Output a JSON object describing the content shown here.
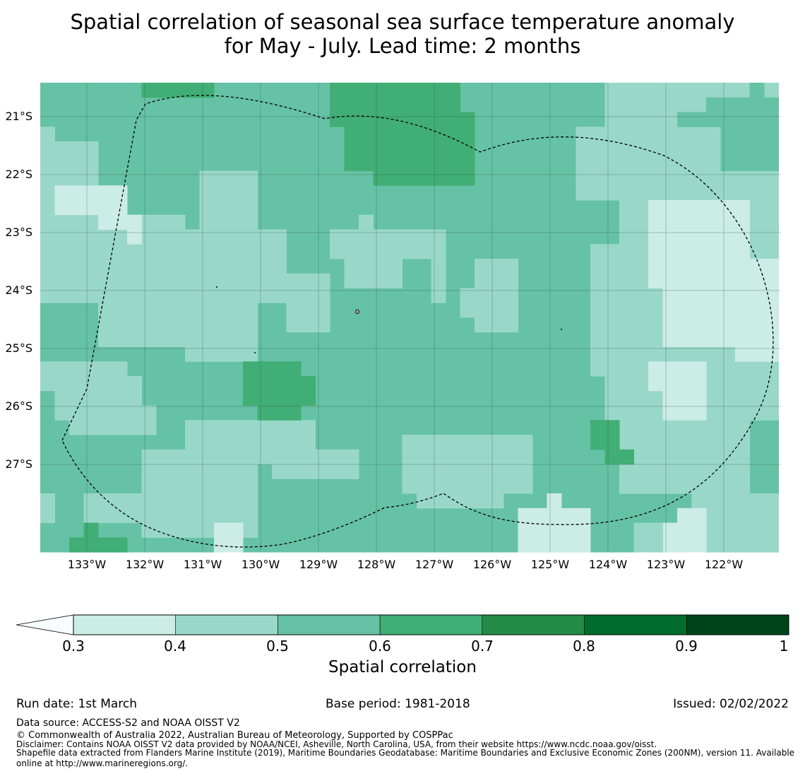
{
  "title": {
    "line1": "Spatial correlation of seasonal sea surface temperature anomaly",
    "line2": "for May - July. Lead time: 2 months"
  },
  "map": {
    "lat_labels": [
      "21°S",
      "22°S",
      "23°S",
      "24°S",
      "25°S",
      "26°S",
      "27°S"
    ],
    "lon_labels": [
      "133°W",
      "132°W",
      "131°W",
      "130°W",
      "129°W",
      "128°W",
      "127°W",
      "126°W",
      "125°W",
      "124°W",
      "123°W",
      "122°W"
    ],
    "colors": {
      "border_line": "#000000",
      "grid_line": "#2f4f3f"
    }
  },
  "colorbar": {
    "ticks": [
      "0.3",
      "0.4",
      "0.5",
      "0.6",
      "0.7",
      "0.8",
      "0.9",
      "1"
    ],
    "label": "Spatial correlation",
    "bin_colors": [
      "#ccece6",
      "#99d8c9",
      "#66c2a4",
      "#41ae76",
      "#238b45",
      "#006d2c",
      "#00441b"
    ],
    "extend_color": "#f7fcfd"
  },
  "footer": {
    "run_date": "Run date: 1st March",
    "base_period": "Base period: 1981-2018",
    "issued": "Issued: 02/02/2022",
    "data_source": "Data source: ACCESS-S2 and NOAA OISST V2",
    "copyright": "© Commonwealth of Australia 2022, Australian Bureau of Meteorology, Supported by COSPPac",
    "disclaimer": "Disclaimer: Contains NOAA OISST V2 data provided by NOAA/NCEI, Asheville, North Carolina, USA, from their website https://www.ncdc.noaa.gov/oisst.",
    "shapefile_line1": "Shapefile data extracted from Flanders Marine Institute (2019), Maritime Boundaries Geodatabase: Maritime Boundaries and Exclusive Economic Zones (200NM), version 11. Available",
    "shapefile_line2": "online at http://www.marineregions.org/."
  }
}
